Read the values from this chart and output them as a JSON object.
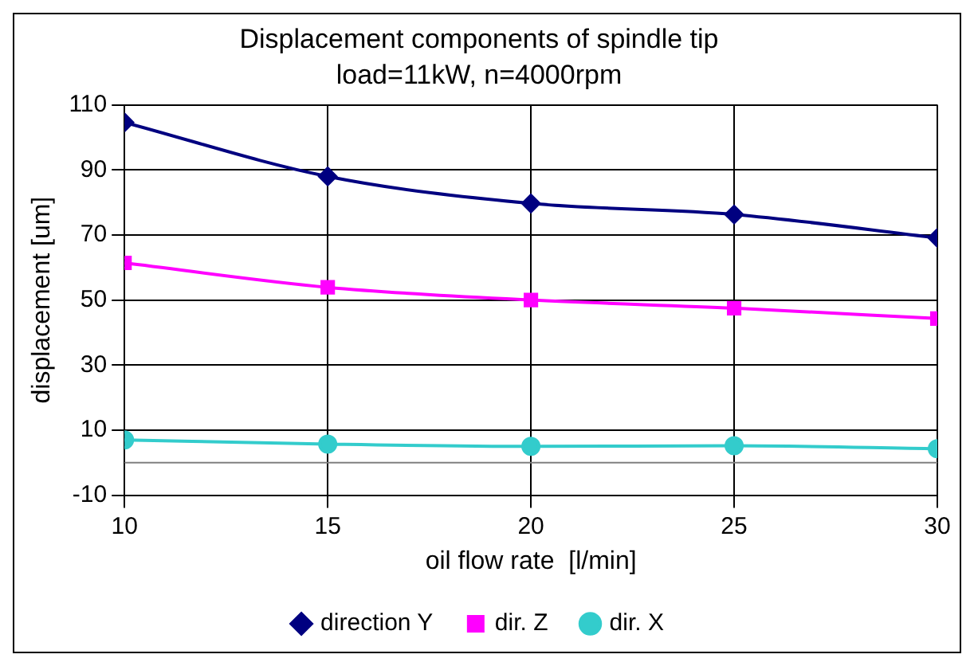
{
  "chart_data": {
    "type": "line",
    "title": "Displacement components of spindle tip",
    "subtitle": "load=11kW, n=4000rpm",
    "xlabel": "oil flow rate  [l/min]",
    "ylabel": "displacement [um]",
    "x": [
      10,
      15,
      20,
      25,
      30
    ],
    "series": [
      {
        "name": "direction Y",
        "color": "#000080",
        "marker": "diamond",
        "values": [
          104.6,
          88,
          79.7,
          76.3,
          69.1
        ]
      },
      {
        "name": "dir. Z",
        "color": "#ff00ff",
        "marker": "square",
        "values": [
          61.4,
          53.9,
          50,
          47.5,
          44.3
        ]
      },
      {
        "name": "dir. X",
        "color": "#33cccc",
        "marker": "circle",
        "values": [
          7,
          5.7,
          5,
          5.2,
          4.3
        ]
      }
    ],
    "xlim": [
      10,
      30
    ],
    "xticks": [
      10,
      15,
      20,
      25,
      30
    ],
    "ylim": [
      -10,
      110
    ],
    "yticks": [
      -10,
      10,
      30,
      50,
      70,
      90,
      110
    ],
    "ref_lines": [
      {
        "axis": "y",
        "value": 0,
        "color": "#808080"
      }
    ],
    "grid": true,
    "legend": "bottom",
    "line_style": "solid"
  }
}
